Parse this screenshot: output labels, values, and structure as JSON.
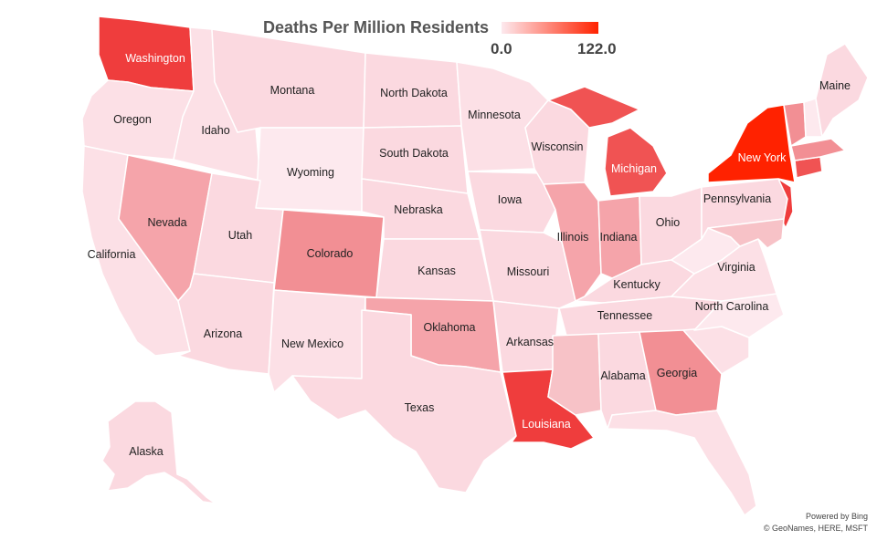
{
  "title": "Deaths Per Million Residents",
  "legend": {
    "min_label": "0.0",
    "max_label": "122.0",
    "min_color": "#fde9ee",
    "max_color": "#ff2200"
  },
  "attribution": {
    "line1": "Powered by Bing",
    "line2": "© GeoNames, HERE, MSFT"
  },
  "colors": {
    "light": "#fce0e6",
    "pale": "#fbd9e0",
    "palest": "#fde9ee",
    "medium": "#f5a4aa",
    "mediumdark": "#f28f94",
    "strong": "#f05353",
    "stronger": "#ef3d3d",
    "max": "#ff2200"
  },
  "states": {
    "washington": "Washington",
    "oregon": "Oregon",
    "california": "California",
    "idaho": "Idaho",
    "nevada": "Nevada",
    "montana": "Montana",
    "wyoming": "Wyoming",
    "utah": "Utah",
    "arizona": "Arizona",
    "colorado": "Colorado",
    "new_mexico": "New Mexico",
    "north_dakota": "North Dakota",
    "south_dakota": "South Dakota",
    "nebraska": "Nebraska",
    "kansas": "Kansas",
    "oklahoma": "Oklahoma",
    "texas": "Texas",
    "minnesota": "Minnesota",
    "iowa": "Iowa",
    "missouri": "Missouri",
    "arkansas": "Arkansas",
    "louisiana": "Louisiana",
    "wisconsin": "Wisconsin",
    "illinois": "Illinois",
    "michigan": "Michigan",
    "indiana": "Indiana",
    "ohio": "Ohio",
    "kentucky": "Kentucky",
    "tennessee": "Tennessee",
    "mississippi": "",
    "alabama": "Alabama",
    "georgia": "Georgia",
    "florida": "",
    "south_carolina": "",
    "north_carolina": "North Carolina",
    "virginia": "Virginia",
    "west_virginia": "",
    "pennsylvania": "Pennsylvania",
    "new_york": "New York",
    "new_jersey": "",
    "maine": "Maine",
    "alaska": "Alaska"
  }
}
